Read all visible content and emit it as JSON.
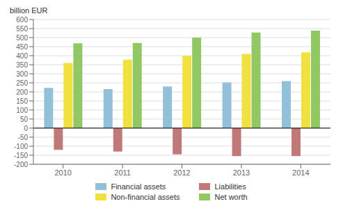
{
  "chart_data": {
    "type": "bar",
    "y_label": "billion EUR",
    "categories": [
      "2010",
      "2011",
      "2012",
      "2013",
      "2014"
    ],
    "series": [
      {
        "name": "Financial assets",
        "color": "#92c0d8",
        "values": [
          222,
          215,
          230,
          252,
          260
        ]
      },
      {
        "name": "Liabilities",
        "color": "#c07878",
        "values": [
          -120,
          -130,
          -145,
          -155,
          -155
        ]
      },
      {
        "name": "Non-financial assets",
        "color": "#f0e040",
        "values": [
          360,
          378,
          400,
          410,
          418
        ]
      },
      {
        "name": "Net worth",
        "color": "#92c864",
        "values": [
          468,
          470,
          500,
          528,
          538
        ]
      }
    ],
    "ylim": [
      -200,
      600
    ],
    "yticks": [
      -200,
      -150,
      -100,
      -50,
      0,
      50,
      100,
      150,
      200,
      250,
      300,
      350,
      400,
      450,
      500,
      550,
      600
    ],
    "grid": true,
    "legend": "bottom"
  }
}
